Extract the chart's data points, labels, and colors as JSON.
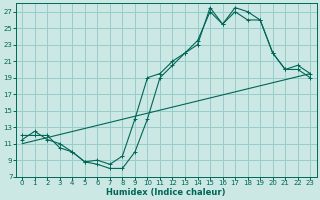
{
  "xlabel": "Humidex (Indice chaleur)",
  "background_color": "#cce8e4",
  "grid_color": "#99cccc",
  "line_color": "#006655",
  "xlim": [
    -0.5,
    23.5
  ],
  "ylim": [
    7,
    28
  ],
  "xticks": [
    0,
    1,
    2,
    3,
    4,
    5,
    6,
    7,
    8,
    9,
    10,
    11,
    12,
    13,
    14,
    15,
    16,
    17,
    18,
    19,
    20,
    21,
    22,
    23
  ],
  "yticks": [
    7,
    9,
    11,
    13,
    15,
    17,
    19,
    21,
    23,
    25,
    27
  ],
  "line1_x": [
    0,
    1,
    2,
    3,
    4,
    5,
    6,
    7,
    8,
    9,
    10,
    11,
    12,
    13,
    14,
    15,
    16,
    17,
    18,
    19,
    20,
    21,
    22,
    23
  ],
  "line1_y": [
    12,
    12,
    12,
    10.5,
    10,
    8.8,
    8.5,
    8,
    8,
    10,
    14,
    19,
    20.5,
    22,
    23,
    27.5,
    25.5,
    27.5,
    27,
    26,
    22,
    20,
    20.5,
    19.5
  ],
  "line2_x": [
    0,
    1,
    2,
    3,
    4,
    5,
    6,
    7,
    8,
    9,
    10,
    11,
    12,
    13,
    14,
    15,
    16,
    17,
    18,
    19,
    20,
    21,
    22,
    23
  ],
  "line2_y": [
    11.5,
    12.5,
    11.5,
    11,
    10,
    8.8,
    9,
    8.5,
    9.5,
    14,
    19,
    19.5,
    21,
    22,
    23.5,
    27,
    25.5,
    27,
    26,
    26,
    22,
    20,
    20,
    19
  ],
  "line3_x": [
    0,
    23
  ],
  "line3_y": [
    11,
    19.5
  ]
}
